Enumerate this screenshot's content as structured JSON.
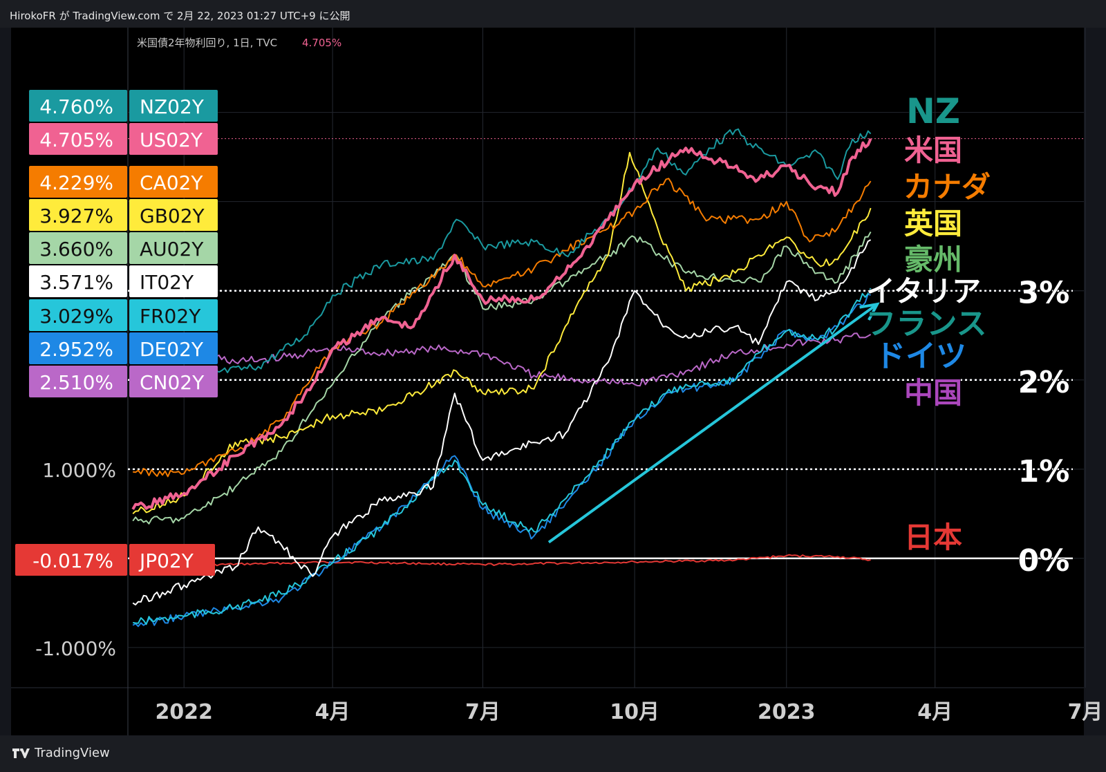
{
  "header": {
    "publish_info": "HirokoFR が TradingView.com で 2月 22, 2023 01:27 UTC+9 に公開"
  },
  "footer": {
    "brand": "TradingView",
    "logo_icon": "tradingview-logo-icon"
  },
  "chart_data": {
    "type": "line",
    "legend_title": "米国債2年物利回り, 1日, TVC",
    "legend_value": "4.705%",
    "y_tick_labels": [
      {
        "value": 1.0,
        "label": "1.000%"
      },
      {
        "value": -1.0,
        "label": "-1.000%"
      }
    ],
    "x_tick_labels": [
      {
        "date": "2022-01-01",
        "label": "2022"
      },
      {
        "date": "2022-04-01",
        "label": "4月"
      },
      {
        "date": "2022-07-01",
        "label": "7月"
      },
      {
        "date": "2022-10-01",
        "label": "10月"
      },
      {
        "date": "2023-01-01",
        "label": "2023"
      },
      {
        "date": "2023-04-01",
        "label": "4月"
      },
      {
        "date": "2023-07-01",
        "label": "7月"
      }
    ],
    "xlim": [
      "2021-11-28",
      "2023-07-01"
    ],
    "ylim": [
      -1.45,
      5.95
    ],
    "reference_lines": [
      {
        "value": 3,
        "label": "3%",
        "style": "dotted"
      },
      {
        "value": 2,
        "label": "2%",
        "style": "dotted"
      },
      {
        "value": 1,
        "label": "1%",
        "style": "dotted"
      },
      {
        "value": 0,
        "label": "0%",
        "style": "solid"
      }
    ],
    "series": [
      {
        "name": "NZ02Y",
        "country": "NZ",
        "last_label": "4.760%",
        "color": "#1a9aa0",
        "label_color": "#19968b",
        "points": [
          [
            "2021-12-01",
            2.1
          ],
          [
            "2022-01-07",
            2.05
          ],
          [
            "2022-02-15",
            2.15
          ],
          [
            "2022-03-15",
            2.5
          ],
          [
            "2022-04-01",
            2.95
          ],
          [
            "2022-05-01",
            3.3
          ],
          [
            "2022-06-01",
            3.35
          ],
          [
            "2022-06-15",
            3.8
          ],
          [
            "2022-07-01",
            3.5
          ],
          [
            "2022-08-01",
            3.55
          ],
          [
            "2022-08-20",
            3.4
          ],
          [
            "2022-09-15",
            3.8
          ],
          [
            "2022-10-01",
            4.2
          ],
          [
            "2022-10-15",
            4.6
          ],
          [
            "2022-11-01",
            4.3
          ],
          [
            "2022-11-15",
            4.6
          ],
          [
            "2022-12-01",
            4.8
          ],
          [
            "2022-12-10",
            4.65
          ],
          [
            "2023-01-01",
            4.4
          ],
          [
            "2023-01-20",
            4.55
          ],
          [
            "2023-02-01",
            4.25
          ],
          [
            "2023-02-10",
            4.7
          ],
          [
            "2023-02-21",
            4.76
          ]
        ]
      },
      {
        "name": "US02Y",
        "country": "米国",
        "last_label": "4.705%",
        "color": "#f06292",
        "label_color": "#f06292",
        "points": [
          [
            "2021-12-01",
            0.55
          ],
          [
            "2022-01-01",
            0.73
          ],
          [
            "2022-02-01",
            1.15
          ],
          [
            "2022-03-01",
            1.5
          ],
          [
            "2022-03-20",
            1.95
          ],
          [
            "2022-04-01",
            2.35
          ],
          [
            "2022-05-01",
            2.7
          ],
          [
            "2022-05-20",
            2.6
          ],
          [
            "2022-06-14",
            3.4
          ],
          [
            "2022-07-01",
            2.9
          ],
          [
            "2022-08-01",
            2.9
          ],
          [
            "2022-08-20",
            3.2
          ],
          [
            "2022-09-15",
            3.8
          ],
          [
            "2022-10-01",
            4.2
          ],
          [
            "2022-11-01",
            4.6
          ],
          [
            "2022-11-20",
            4.45
          ],
          [
            "2022-12-15",
            4.25
          ],
          [
            "2023-01-01",
            4.4
          ],
          [
            "2023-01-15",
            4.2
          ],
          [
            "2023-02-01",
            4.1
          ],
          [
            "2023-02-10",
            4.5
          ],
          [
            "2023-02-21",
            4.705
          ]
        ]
      },
      {
        "name": "CA02Y",
        "country": "カナダ",
        "last_label": "4.229%",
        "color": "#f57c00",
        "label_color": "#f57c00",
        "points": [
          [
            "2021-12-01",
            0.97
          ],
          [
            "2022-01-01",
            0.95
          ],
          [
            "2022-02-01",
            1.2
          ],
          [
            "2022-03-01",
            1.55
          ],
          [
            "2022-04-01",
            2.35
          ],
          [
            "2022-05-01",
            2.65
          ],
          [
            "2022-06-15",
            3.4
          ],
          [
            "2022-07-01",
            3.05
          ],
          [
            "2022-08-01",
            3.25
          ],
          [
            "2022-08-20",
            3.45
          ],
          [
            "2022-09-15",
            3.7
          ],
          [
            "2022-10-01",
            3.9
          ],
          [
            "2022-10-20",
            4.25
          ],
          [
            "2022-11-15",
            3.8
          ],
          [
            "2022-12-15",
            3.8
          ],
          [
            "2023-01-01",
            4.0
          ],
          [
            "2023-01-15",
            3.55
          ],
          [
            "2023-02-01",
            3.7
          ],
          [
            "2023-02-21",
            4.229
          ]
        ]
      },
      {
        "name": "GB02Y",
        "country": "英国",
        "last_label": "3.927%",
        "color": "#ffeb3b",
        "label_color": "#ffeb3b",
        "points": [
          [
            "2021-12-01",
            0.5
          ],
          [
            "2022-01-01",
            0.7
          ],
          [
            "2022-02-01",
            1.3
          ],
          [
            "2022-03-01",
            1.35
          ],
          [
            "2022-04-01",
            1.6
          ],
          [
            "2022-05-01",
            1.65
          ],
          [
            "2022-06-15",
            2.1
          ],
          [
            "2022-07-01",
            1.85
          ],
          [
            "2022-08-01",
            1.9
          ],
          [
            "2022-08-20",
            2.6
          ],
          [
            "2022-09-15",
            3.4
          ],
          [
            "2022-09-28",
            4.55
          ],
          [
            "2022-10-15",
            3.7
          ],
          [
            "2022-11-01",
            3.0
          ],
          [
            "2022-12-01",
            3.2
          ],
          [
            "2022-12-15",
            3.4
          ],
          [
            "2023-01-01",
            3.6
          ],
          [
            "2023-01-20",
            3.3
          ],
          [
            "2023-02-01",
            3.35
          ],
          [
            "2023-02-21",
            3.927
          ]
        ]
      },
      {
        "name": "AU02Y",
        "country": "豪州",
        "last_label": "3.660%",
        "color": "#a5d6a7",
        "label_color": "#66bb6a",
        "points": [
          [
            "2021-12-01",
            0.42
          ],
          [
            "2022-01-01",
            0.45
          ],
          [
            "2022-02-01",
            0.8
          ],
          [
            "2022-03-01",
            1.2
          ],
          [
            "2022-04-01",
            1.95
          ],
          [
            "2022-05-01",
            2.7
          ],
          [
            "2022-06-15",
            3.4
          ],
          [
            "2022-07-01",
            2.8
          ],
          [
            "2022-08-01",
            2.9
          ],
          [
            "2022-08-20",
            3.1
          ],
          [
            "2022-09-15",
            3.4
          ],
          [
            "2022-10-01",
            3.6
          ],
          [
            "2022-11-01",
            3.2
          ],
          [
            "2022-12-15",
            3.1
          ],
          [
            "2023-01-01",
            3.5
          ],
          [
            "2023-01-20",
            3.2
          ],
          [
            "2023-02-01",
            3.1
          ],
          [
            "2023-02-21",
            3.66
          ]
        ]
      },
      {
        "name": "IT02Y",
        "country": "イタリア",
        "last_label": "3.571%",
        "color": "#ffffff",
        "label_color": "#ffffff",
        "points": [
          [
            "2021-12-01",
            -0.5
          ],
          [
            "2022-01-01",
            -0.3
          ],
          [
            "2022-02-01",
            -0.1
          ],
          [
            "2022-02-15",
            0.35
          ],
          [
            "2022-03-01",
            0.15
          ],
          [
            "2022-03-20",
            -0.2
          ],
          [
            "2022-04-01",
            0.25
          ],
          [
            "2022-05-01",
            0.65
          ],
          [
            "2022-06-01",
            0.8
          ],
          [
            "2022-06-14",
            1.85
          ],
          [
            "2022-07-01",
            1.1
          ],
          [
            "2022-08-01",
            1.3
          ],
          [
            "2022-08-20",
            1.4
          ],
          [
            "2022-09-15",
            2.2
          ],
          [
            "2022-10-01",
            3.0
          ],
          [
            "2022-10-20",
            2.6
          ],
          [
            "2022-11-01",
            2.5
          ],
          [
            "2022-12-01",
            2.6
          ],
          [
            "2022-12-15",
            2.4
          ],
          [
            "2023-01-01",
            3.1
          ],
          [
            "2023-01-20",
            2.9
          ],
          [
            "2023-02-01",
            3.0
          ],
          [
            "2023-02-21",
            3.571
          ]
        ]
      },
      {
        "name": "FR02Y",
        "country": "フランス",
        "last_label": "3.029%",
        "color": "#26c6da",
        "label_color": "#19968b",
        "points": [
          [
            "2021-12-01",
            -0.72
          ],
          [
            "2022-01-01",
            -0.65
          ],
          [
            "2022-02-01",
            -0.55
          ],
          [
            "2022-03-01",
            -0.4
          ],
          [
            "2022-04-01",
            -0.05
          ],
          [
            "2022-05-01",
            0.35
          ],
          [
            "2022-06-14",
            1.1
          ],
          [
            "2022-07-01",
            0.6
          ],
          [
            "2022-08-01",
            0.3
          ],
          [
            "2022-09-01",
            0.9
          ],
          [
            "2022-10-01",
            1.55
          ],
          [
            "2022-10-20",
            1.85
          ],
          [
            "2022-11-01",
            1.95
          ],
          [
            "2022-12-01",
            2.0
          ],
          [
            "2022-12-15",
            2.3
          ],
          [
            "2023-01-01",
            2.55
          ],
          [
            "2023-01-20",
            2.45
          ],
          [
            "2023-02-01",
            2.6
          ],
          [
            "2023-02-21",
            3.029
          ]
        ]
      },
      {
        "name": "DE02Y",
        "country": "ドイツ",
        "last_label": "2.952%",
        "color": "#1e88e5",
        "label_color": "#1e88e5",
        "points": [
          [
            "2021-12-01",
            -0.75
          ],
          [
            "2022-01-01",
            -0.65
          ],
          [
            "2022-02-01",
            -0.55
          ],
          [
            "2022-03-01",
            -0.45
          ],
          [
            "2022-04-01",
            -0.05
          ],
          [
            "2022-05-01",
            0.35
          ],
          [
            "2022-06-14",
            1.15
          ],
          [
            "2022-07-01",
            0.55
          ],
          [
            "2022-08-01",
            0.25
          ],
          [
            "2022-09-01",
            0.85
          ],
          [
            "2022-10-01",
            1.55
          ],
          [
            "2022-10-20",
            1.85
          ],
          [
            "2022-11-01",
            1.9
          ],
          [
            "2022-12-01",
            2.0
          ],
          [
            "2022-12-15",
            2.25
          ],
          [
            "2023-01-01",
            2.55
          ],
          [
            "2023-01-20",
            2.45
          ],
          [
            "2023-02-01",
            2.6
          ],
          [
            "2023-02-21",
            2.952
          ]
        ]
      },
      {
        "name": "CN02Y",
        "country": "中国",
        "last_label": "2.510%",
        "color": "#ba68c8",
        "label_color": "#ab47bc",
        "points": [
          [
            "2022-01-01",
            2.35
          ],
          [
            "2022-02-01",
            2.2
          ],
          [
            "2022-03-01",
            2.25
          ],
          [
            "2022-04-01",
            2.35
          ],
          [
            "2022-05-01",
            2.3
          ],
          [
            "2022-06-01",
            2.35
          ],
          [
            "2022-07-01",
            2.3
          ],
          [
            "2022-08-01",
            2.05
          ],
          [
            "2022-09-01",
            2.0
          ],
          [
            "2022-10-01",
            1.95
          ],
          [
            "2022-11-01",
            2.1
          ],
          [
            "2022-12-01",
            2.3
          ],
          [
            "2023-01-01",
            2.4
          ],
          [
            "2023-02-01",
            2.45
          ],
          [
            "2023-02-21",
            2.51
          ]
        ]
      },
      {
        "name": "JP02Y",
        "country": "日本",
        "last_label": "-0.017%",
        "color": "#e53935",
        "label_color": "#e53935",
        "points": [
          [
            "2022-01-01",
            -0.08
          ],
          [
            "2022-04-01",
            -0.04
          ],
          [
            "2022-07-01",
            -0.07
          ],
          [
            "2022-10-01",
            -0.04
          ],
          [
            "2022-12-01",
            -0.02
          ],
          [
            "2023-01-01",
            0.03
          ],
          [
            "2023-02-01",
            0.02
          ],
          [
            "2023-02-21",
            -0.017
          ]
        ]
      }
    ],
    "country_label_order": [
      "NZ02Y",
      "US02Y",
      "CA02Y",
      "GB02Y",
      "AU02Y",
      "IT02Y",
      "FR02Y",
      "DE02Y",
      "CN02Y",
      "JP02Y"
    ],
    "trend_arrow": {
      "from": [
        "2022-08-10",
        0.18
      ],
      "to": [
        "2023-02-25",
        2.85
      ],
      "color": "#26c6da"
    }
  }
}
